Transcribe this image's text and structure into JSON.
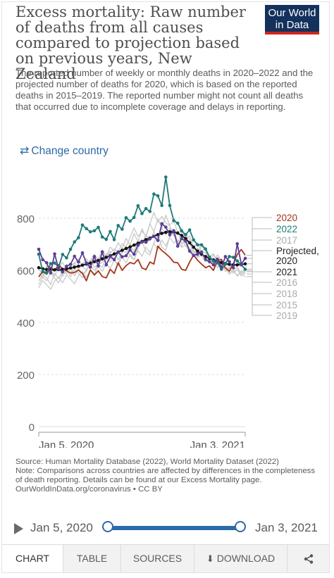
{
  "header": {
    "title": "Excess mortality: Raw number of deaths from all causes compared to projection based on previous years, New Zealand",
    "subtitle": "The reported number of weekly or monthly deaths in 2020–2022 and the projected number of deaths for 2020, which is based on the reported deaths in 2015–2019. The reported number might not count all deaths that occurred due to incomplete coverage and delays in reporting.",
    "logo_line1": "Our World",
    "logo_line2": "in Data"
  },
  "change_country": {
    "label": "Change country",
    "icon": "swap-arrows-icon"
  },
  "chart_data": {
    "type": "line",
    "x_start": "Jan 5, 2020",
    "x_end": "Jan 3, 2021",
    "x_ticks": [
      "Jan 5, 2020",
      "Jan 3, 2021"
    ],
    "ylim": [
      0,
      1000
    ],
    "y_ticks": [
      "0",
      "200",
      "400",
      "600",
      "800"
    ],
    "y_tick_values": [
      0,
      200,
      400,
      600,
      800
    ],
    "grid": "horizontal dashed",
    "legend_placement": "right",
    "series": [
      {
        "name": "2020",
        "color": "#a5361a",
        "markers": false,
        "values": [
          575,
          596,
          585,
          612,
          598,
          622,
          605,
          598,
          590,
          592,
          601,
          588,
          560,
          602,
          582,
          598,
          576,
          571,
          604,
          588,
          629,
          600,
          618,
          630,
          625,
          642,
          609,
          603,
          632,
          624,
          693,
          676,
          664,
          650,
          631,
          629,
          604,
          600,
          632,
          659,
          639,
          624,
          610,
          617,
          600,
          637,
          641,
          609,
          597,
          625,
          661,
          680,
          658
        ]
      },
      {
        "name": "2022",
        "color": "#1f7a78",
        "markers": true,
        "values": [
          662,
          595,
          591,
          626,
          628,
          613,
          661,
          648,
          681,
          709,
          725,
          774,
          760,
          748,
          752,
          765,
          728,
          719,
          749,
          718,
          772,
          758,
          802,
          789,
          803,
          848,
          818,
          837,
          826,
          893,
          886,
          849,
          958,
          849,
          791,
          781,
          751,
          737,
          755,
          717,
          698,
          698,
          682,
          651,
          635,
          630,
          604,
          624,
          653,
          650,
          636,
          621,
          604
        ]
      },
      {
        "name": "2017",
        "color": "#c9c9c9",
        "markers": false,
        "values": [
          560,
          582,
          571,
          545,
          590,
          568,
          600,
          587,
          612,
          579,
          603,
          588,
          596,
          641,
          612,
          623,
          644,
          663,
          668,
          682,
          670,
          703,
          690,
          727,
          763,
          730,
          750,
          732,
          780,
          822,
          785,
          807,
          783,
          770,
          736,
          712,
          724,
          695,
          703,
          662,
          685,
          671,
          668,
          632,
          660,
          633,
          619,
          608,
          585,
          603,
          577,
          598,
          586
        ]
      },
      {
        "name": "Projected, 2020",
        "color": "#111111",
        "markers": true,
        "values": [
          610,
          606,
          603,
          602,
          602,
          603,
          604,
          606,
          609,
          612,
          616,
          620,
          624,
          628,
          633,
          638,
          644,
          650,
          656,
          663,
          670,
          677,
          684,
          690,
          697,
          704,
          711,
          718,
          724,
          731,
          737,
          742,
          746,
          748,
          748,
          743,
          734,
          722,
          706,
          689,
          674,
          662,
          653,
          646,
          640,
          635,
          630,
          626,
          623,
          621,
          621,
          622,
          625
        ]
      },
      {
        "name": "2021",
        "color": "#5b3f94",
        "markers": true,
        "values": [
          681,
          641,
          629,
          590,
          663,
          606,
          594,
          616,
          623,
          654,
          632,
          667,
          628,
          612,
          653,
          617,
          671,
          621,
          653,
          641,
          670,
          652,
          656,
          678,
          662,
          697,
          709,
          708,
          721,
          730,
          715,
          779,
          766,
          736,
          752,
          693,
          722,
          712,
          674,
          657,
          662,
          670,
          642,
          634,
          621,
          643,
          611,
          653,
          633,
          610,
          702,
          624,
          646
        ]
      },
      {
        "name": "2016",
        "color": "#c9c9c9",
        "markers": false,
        "values": [
          546,
          574,
          560,
          592,
          571,
          552,
          587,
          601,
          576,
          604,
          590,
          571,
          603,
          617,
          600,
          622,
          631,
          647,
          632,
          669,
          640,
          679,
          666,
          699,
          671,
          716,
          702,
          737,
          713,
          748,
          724,
          761,
          736,
          762,
          731,
          750,
          702,
          716,
          679,
          691,
          654,
          668,
          641,
          626,
          638,
          610,
          624,
          596,
          612,
          589,
          603,
          578,
          595
        ]
      },
      {
        "name": "2018",
        "color": "#c9c9c9",
        "markers": false,
        "values": [
          590,
          571,
          612,
          585,
          603,
          620,
          577,
          599,
          614,
          630,
          602,
          621,
          646,
          618,
          662,
          641,
          677,
          653,
          690,
          672,
          706,
          684,
          723,
          697,
          742,
          710,
          760,
          727,
          779,
          748,
          797,
          761,
          812,
          773,
          790,
          744,
          761,
          716,
          733,
          691,
          704,
          673,
          686,
          652,
          664,
          633,
          644,
          617,
          625,
          602,
          610,
          588,
          604
        ]
      },
      {
        "name": "2015",
        "color": "#c9c9c9",
        "markers": false,
        "values": [
          533,
          561,
          545,
          527,
          558,
          574,
          552,
          583,
          566,
          548,
          579,
          595,
          573,
          602,
          587,
          614,
          596,
          628,
          607,
          639,
          618,
          651,
          629,
          662,
          641,
          676,
          654,
          689,
          668,
          703,
          681,
          716,
          694,
          727,
          705,
          716,
          688,
          697,
          669,
          676,
          650,
          657,
          633,
          640,
          617,
          624,
          603,
          609,
          591,
          597,
          582,
          588,
          576
        ]
      },
      {
        "name": "2019",
        "color": "#c9c9c9",
        "markers": false,
        "values": [
          605,
          583,
          619,
          597,
          578,
          612,
          631,
          602,
          588,
          627,
          646,
          614,
          601,
          638,
          659,
          624,
          612,
          651,
          673,
          637,
          625,
          668,
          692,
          654,
          640,
          685,
          714,
          670,
          659,
          706,
          738,
          689,
          677,
          729,
          757,
          705,
          693,
          736,
          718,
          674,
          663,
          694,
          676,
          641,
          633,
          659,
          640,
          612,
          607,
          628,
          611,
          590,
          598
        ]
      }
    ]
  },
  "sources": {
    "source": "Source: Human Mortality Database (2022), World Mortality Dataset (2022)",
    "note": "Note: Comparisons across countries are affected by differences in the completeness of death reporting. Details can be found at our Excess Mortality page.",
    "url": "OurWorldInData.org/coronavirus • CC BY"
  },
  "timeline": {
    "start_label": "Jan 5, 2020",
    "end_label": "Jan 3, 2021",
    "play_icon": "play-icon",
    "start_fraction": 0,
    "end_fraction": 1
  },
  "tabs": [
    {
      "label": "CHART",
      "active": true
    },
    {
      "label": "TABLE",
      "active": false
    },
    {
      "label": "SOURCES",
      "active": false
    },
    {
      "label": "DOWNLOAD",
      "active": false,
      "icon": "download-icon"
    },
    {
      "label": "",
      "active": false,
      "icon": "share-icon"
    }
  ]
}
